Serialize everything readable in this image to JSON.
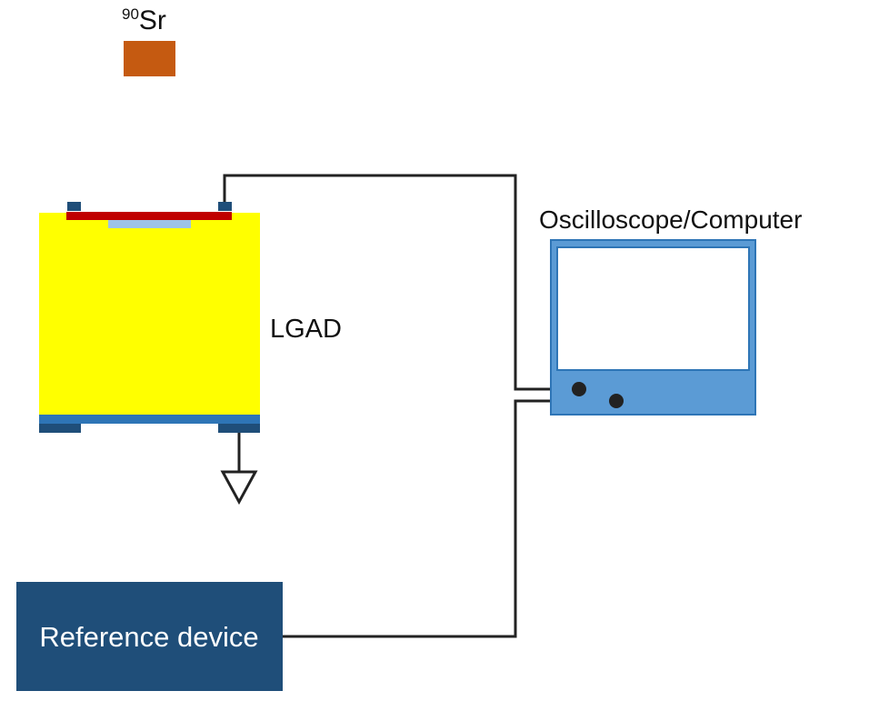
{
  "source": {
    "mass_number": "90",
    "element": "Sr",
    "color": "#C55A11"
  },
  "sensor": {
    "label": "LGAD",
    "bulk_color": "#FFFF00",
    "implant_color": "#C00000",
    "gain_layer_color": "#9DC3E6",
    "backside_color": "#2E75B6",
    "pad_color": "#1F4E79"
  },
  "scope": {
    "label": "Oscilloscope/Computer",
    "body_color": "#5B9BD5",
    "border_color": "#2E75B6"
  },
  "reference": {
    "label": "Reference device",
    "color": "#1F4E79"
  },
  "wire_color": "#222222"
}
